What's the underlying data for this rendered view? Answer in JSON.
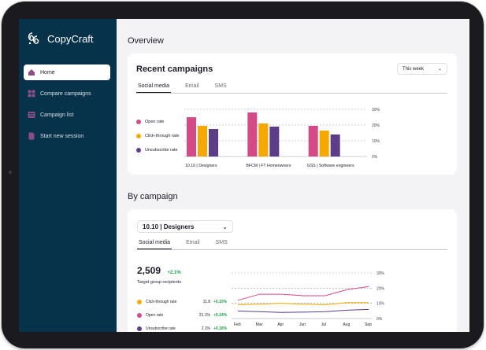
{
  "app": {
    "name": "CopyCraft"
  },
  "sidebar": {
    "items": [
      {
        "label": "Home",
        "icon": "home-icon",
        "active": true
      },
      {
        "label": "Compare campaigns",
        "icon": "grid-icon",
        "active": false
      },
      {
        "label": "Campaign list",
        "icon": "list-icon",
        "active": false
      },
      {
        "label": "Start new session",
        "icon": "document-icon",
        "active": false
      }
    ]
  },
  "overview": {
    "title": "Overview",
    "card_title": "Recent campaigns",
    "period": "This week",
    "tabs": [
      "Social media",
      "Email",
      "SMS"
    ],
    "active_tab": "Social media"
  },
  "by_campaign": {
    "title": "By campaign",
    "selected_campaign": "10.10 | Designers",
    "tabs": [
      "Social media",
      "Email",
      "SMS"
    ],
    "active_tab": "Social media",
    "recipients": "2,509",
    "recipients_delta": "+2.1%",
    "recipients_label": "Target group recipients",
    "metrics": [
      {
        "name": "Click-through rate",
        "value": "11.8",
        "delta": "+0.10%",
        "color": "#f5a800"
      },
      {
        "name": "Open rate",
        "value": "21.1%",
        "delta": "+0.24%",
        "color": "#d44a87"
      },
      {
        "name": "Unsubscribe rate",
        "value": "2.1%",
        "delta": "+0.18%",
        "color": "#5b3e87"
      }
    ]
  },
  "colors": {
    "open": "#d44a87",
    "ctr": "#f5a800",
    "unsub": "#5b3e87",
    "sidebar": "#06324a"
  },
  "chart_data": [
    {
      "type": "bar",
      "categories": [
        "10.10 | Designers",
        "BFCM | FT Homeowners",
        "GSS | Software engineers"
      ],
      "series": [
        {
          "name": "Open rate",
          "values": [
            25,
            28,
            19.5
          ]
        },
        {
          "name": "Click-through rate",
          "values": [
            19.5,
            21,
            16.5
          ]
        },
        {
          "name": "Unsubscribe rate",
          "values": [
            17.5,
            19,
            14
          ]
        }
      ],
      "ylim": [
        0,
        30
      ],
      "yticks": [
        "0%",
        "10%",
        "20%",
        "30%"
      ],
      "legend": "left",
      "grid": true
    },
    {
      "type": "line",
      "x": [
        "Feb",
        "Mar",
        "Apr",
        "Jun",
        "Jul",
        "Aug",
        "Sep"
      ],
      "series": [
        {
          "name": "Open rate",
          "values": [
            12,
            16,
            16,
            15,
            15,
            19,
            21
          ]
        },
        {
          "name": "Click-through rate",
          "values": [
            9,
            9.5,
            10,
            9.5,
            9,
            10.5,
            10.5
          ]
        },
        {
          "name": "Unsubscribe rate",
          "values": [
            5,
            4.5,
            4,
            4.2,
            4.5,
            5.5,
            6
          ]
        }
      ],
      "ylim": [
        0,
        30
      ],
      "yticks": [
        "0%",
        "10%",
        "20%",
        "30%"
      ],
      "grid": true
    }
  ]
}
